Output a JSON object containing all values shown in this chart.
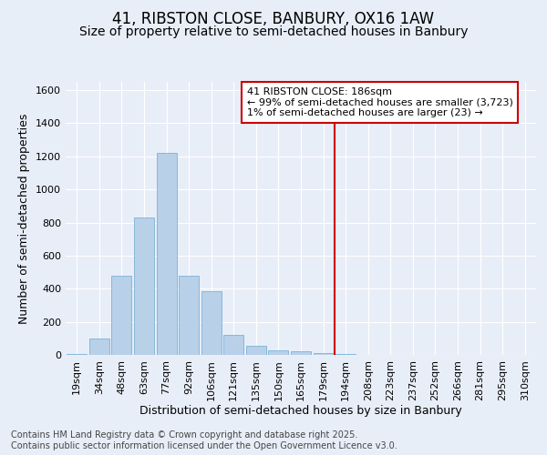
{
  "title_line1": "41, RIBSTON CLOSE, BANBURY, OX16 1AW",
  "title_line2": "Size of property relative to semi-detached houses in Banbury",
  "xlabel": "Distribution of semi-detached houses by size in Banbury",
  "ylabel": "Number of semi-detached properties",
  "categories": [
    "19sqm",
    "34sqm",
    "48sqm",
    "63sqm",
    "77sqm",
    "92sqm",
    "106sqm",
    "121sqm",
    "135sqm",
    "150sqm",
    "165sqm",
    "179sqm",
    "194sqm",
    "208sqm",
    "223sqm",
    "237sqm",
    "252sqm",
    "266sqm",
    "281sqm",
    "295sqm",
    "310sqm"
  ],
  "bar_values": [
    5,
    100,
    480,
    830,
    1220,
    480,
    385,
    120,
    55,
    30,
    20,
    10,
    5,
    2,
    2,
    1,
    1,
    1,
    0,
    0,
    0
  ],
  "bar_color": "#b8d0e8",
  "bar_edge_color": "#6aaad4",
  "vline_color": "#cc0000",
  "vline_x": 11.5,
  "legend_title": "41 RIBSTON CLOSE: 186sqm",
  "legend_line1": "← 99% of semi-detached houses are smaller (3,723)",
  "legend_line2": "1% of semi-detached houses are larger (23) →",
  "legend_box_color": "#cc0000",
  "ylim": [
    0,
    1650
  ],
  "yticks": [
    0,
    200,
    400,
    600,
    800,
    1000,
    1200,
    1400,
    1600
  ],
  "footer_line1": "Contains HM Land Registry data © Crown copyright and database right 2025.",
  "footer_line2": "Contains public sector information licensed under the Open Government Licence v3.0.",
  "bg_color": "#e8eef8",
  "plot_bg_color": "#e8eef8",
  "grid_color": "#ffffff",
  "title_fontsize": 12,
  "subtitle_fontsize": 10,
  "axis_label_fontsize": 9,
  "tick_fontsize": 8,
  "legend_fontsize": 8,
  "footer_fontsize": 7
}
